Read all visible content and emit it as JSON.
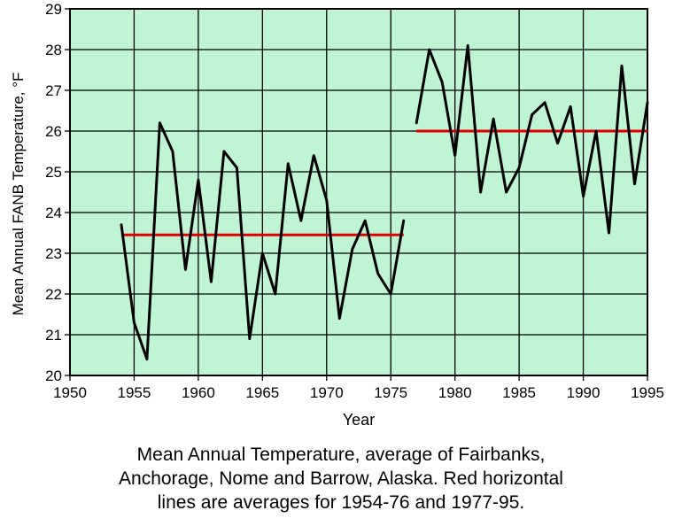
{
  "chart_data": {
    "type": "line",
    "xlabel": "Year",
    "ylabel": "Mean Annual FANB Temperature, °F",
    "xlim": [
      1950,
      1995
    ],
    "ylim": [
      20,
      29
    ],
    "x_ticks": [
      "1950",
      "1955",
      "1960",
      "1965",
      "1970",
      "1975",
      "1980",
      "1985",
      "1990",
      "1995"
    ],
    "y_ticks": [
      "20",
      "21",
      "22",
      "23",
      "24",
      "25",
      "26",
      "27",
      "28",
      "29"
    ],
    "grid": true,
    "plot_background": "#bff5d3",
    "segments": [
      {
        "color": "#000000",
        "x": [
          1954,
          1955,
          1956,
          1957,
          1958,
          1959,
          1960,
          1961,
          1962,
          1963,
          1964,
          1965,
          1966,
          1967,
          1968,
          1969,
          1970,
          1971,
          1972,
          1973,
          1974,
          1975,
          1976
        ],
        "values": [
          23.7,
          21.3,
          20.4,
          26.2,
          25.5,
          22.6,
          24.8,
          22.3,
          25.5,
          25.1,
          20.9,
          23.0,
          22.0,
          25.2,
          23.8,
          25.4,
          24.3,
          21.4,
          23.1,
          23.8,
          22.5,
          22.0,
          23.8
        ]
      },
      {
        "color": "#000000",
        "x": [
          1977,
          1978,
          1979,
          1980,
          1981,
          1982,
          1983,
          1984,
          1985,
          1986,
          1987,
          1988,
          1989,
          1990,
          1991,
          1992,
          1993,
          1994,
          1995
        ],
        "values": [
          26.2,
          28.0,
          27.2,
          25.4,
          28.1,
          24.5,
          26.3,
          24.5,
          25.1,
          26.4,
          26.7,
          25.7,
          26.6,
          24.4,
          26.0,
          23.5,
          27.6,
          24.7,
          26.7
        ]
      }
    ],
    "averages": [
      {
        "x": [
          1954,
          1976
        ],
        "value": 23.45,
        "color": "#e00000"
      },
      {
        "x": [
          1977,
          1995
        ],
        "value": 26.0,
        "color": "#e00000"
      }
    ]
  },
  "caption": [
    "Mean Annual Temperature, average of Fairbanks,",
    "Anchorage, Nome and Barrow, Alaska.  Red horizontal",
    "lines are averages for 1954-76 and 1977-95."
  ]
}
